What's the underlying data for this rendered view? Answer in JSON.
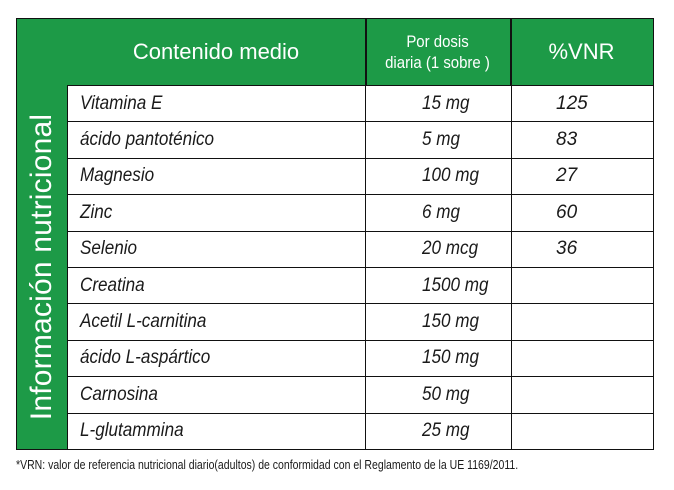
{
  "side_label": "Información nutricional",
  "header": {
    "name": "Contenido medio",
    "dose_line1": "Por dosis",
    "dose_line2": "diaria  (1 sobre )",
    "vnr": "%VNR"
  },
  "rows": [
    {
      "name": "Vitamina E",
      "dose": "15 mg",
      "vnr": "125"
    },
    {
      "name": "ácido pantoténico",
      "dose": "5 mg",
      "vnr": "83"
    },
    {
      "name": "Magnesio",
      "dose": "100  mg",
      "vnr": "27"
    },
    {
      "name": "Zinc",
      "dose": "6 mg",
      "vnr": "60"
    },
    {
      "name": "Selenio",
      "dose": "20 mcg",
      "vnr": "36"
    },
    {
      "name": "Creatina",
      "dose": "1500 mg",
      "vnr": ""
    },
    {
      "name": "Acetil L-carnitina",
      "dose": "150 mg",
      "vnr": ""
    },
    {
      "name": "ácido  L-aspártico",
      "dose": "150 mg",
      "vnr": ""
    },
    {
      "name": "Carnosina",
      "dose": "50 mg",
      "vnr": ""
    },
    {
      "name": "L-glutammina",
      "dose": "25 mg",
      "vnr": ""
    }
  ],
  "footnote": "*VRN: valor de referencia nutricional diario(adultos) de conformidad con el Reglamento de la  UE 1169/2011.",
  "colors": {
    "header_green": "#1d9a47",
    "border": "#111111"
  }
}
